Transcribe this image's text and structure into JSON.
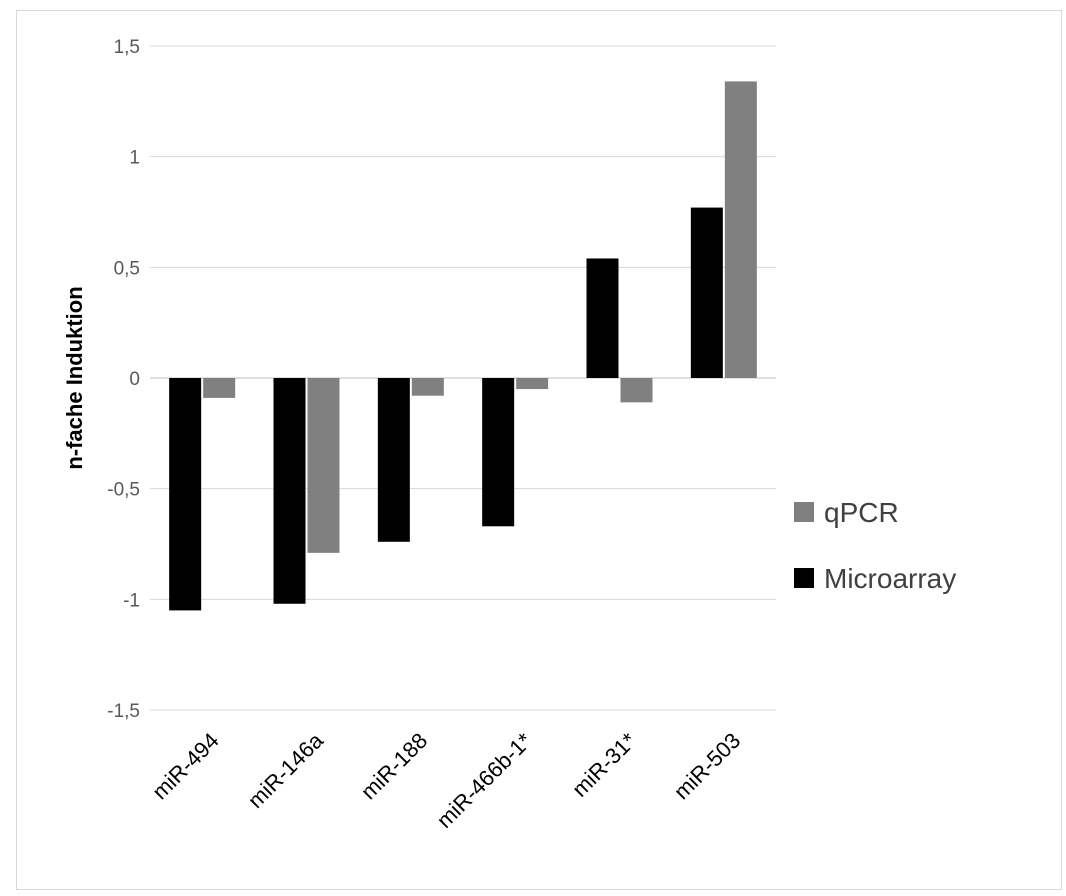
{
  "chart_data": {
    "type": "bar",
    "ylabel": "n-fache Induktion",
    "xlabel": "",
    "ylim": [
      -1.5,
      1.5
    ],
    "yticks": [
      1.5,
      1,
      0.5,
      0,
      -0.5,
      -1,
      -1.5
    ],
    "ytick_labels": [
      "1,5",
      "1",
      "0,5",
      "0",
      "-0,5",
      "-1",
      "-1,5"
    ],
    "grid": true,
    "legend_position": "right",
    "categories": [
      "miR-494",
      "miR-146a",
      "miR-188",
      "miR-466b-1*",
      "miR-31*",
      "miR-503"
    ],
    "series": [
      {
        "name": "Microarray",
        "color": "#000000",
        "values": [
          -1.05,
          -1.02,
          -0.74,
          -0.67,
          0.54,
          0.77
        ]
      },
      {
        "name": "qPCR",
        "color": "#808080",
        "values": [
          -0.09,
          -0.79,
          -0.08,
          -0.05,
          -0.11,
          1.34
        ]
      }
    ],
    "legend_order": [
      "qPCR",
      "Microarray"
    ]
  }
}
